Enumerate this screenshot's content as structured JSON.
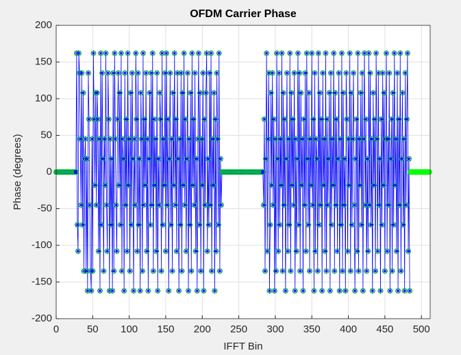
{
  "chart_data": {
    "type": "line",
    "title": "OFDM Carrier Phase",
    "x_label": "IFFT Bin",
    "y_label": "Phase (degrees)",
    "xlim": [
      0,
      512
    ],
    "xticks": [
      0,
      50,
      100,
      150,
      200,
      250,
      300,
      350,
      400,
      450,
      500
    ],
    "ylim": [
      -200,
      200
    ],
    "yticks": [
      -200,
      -150,
      -100,
      -50,
      0,
      50,
      100,
      150,
      200
    ],
    "grid": true,
    "series": [
      {
        "color": "#0000ff",
        "marker_color": "#00ff00",
        "x": [
          0,
          1,
          2,
          3,
          4,
          5,
          6,
          7,
          8,
          9,
          10,
          11,
          12,
          13,
          14,
          15,
          16,
          17,
          18,
          19,
          20,
          21,
          22,
          23,
          24,
          25,
          26,
          27,
          28,
          29,
          30,
          31,
          32,
          33,
          34,
          35,
          36,
          37,
          38,
          39,
          40,
          41,
          42,
          43,
          44,
          45,
          46,
          47,
          48,
          49,
          50,
          51,
          52,
          53,
          54,
          55,
          56,
          57,
          58,
          59,
          60,
          61,
          62,
          63,
          64,
          65,
          66,
          67,
          68,
          69,
          70,
          71,
          72,
          73,
          74,
          75,
          76,
          77,
          78,
          79,
          80,
          81,
          82,
          83,
          84,
          85,
          86,
          87,
          88,
          89,
          90,
          91,
          92,
          93,
          94,
          95,
          96,
          97,
          98,
          99,
          100,
          101,
          102,
          103,
          104,
          105,
          106,
          107,
          108,
          109,
          110,
          111,
          112,
          113,
          114,
          115,
          116,
          117,
          118,
          119,
          120,
          121,
          122,
          123,
          124,
          125,
          126,
          127,
          128,
          129,
          130,
          131,
          132,
          133,
          134,
          135,
          136,
          137,
          138,
          139,
          140,
          141,
          142,
          143,
          144,
          145,
          146,
          147,
          148,
          149,
          150,
          151,
          152,
          153,
          154,
          155,
          156,
          157,
          158,
          159,
          160,
          161,
          162,
          163,
          164,
          165,
          166,
          167,
          168,
          169,
          170,
          171,
          172,
          173,
          174,
          175,
          176,
          177,
          178,
          179,
          180,
          181,
          182,
          183,
          184,
          185,
          186,
          187,
          188,
          189,
          190,
          191,
          192,
          193,
          194,
          195,
          196,
          197,
          198,
          199,
          200,
          201,
          202,
          203,
          204,
          205,
          206,
          207,
          208,
          209,
          210,
          211,
          212,
          213,
          214,
          215,
          216,
          217,
          218,
          219,
          220,
          221,
          222,
          223,
          224,
          225,
          226,
          227,
          228,
          229,
          230,
          231,
          232,
          233,
          234,
          235,
          236,
          237,
          238,
          239,
          240,
          241,
          242,
          243,
          244,
          245,
          246,
          247,
          248,
          249,
          250,
          251,
          252,
          253,
          254,
          255,
          256,
          257,
          258,
          259,
          260,
          261,
          262,
          263,
          264,
          265,
          266,
          267,
          268,
          269,
          270,
          271,
          272,
          273,
          274,
          275,
          276,
          277,
          278,
          279,
          280,
          281,
          282,
          283,
          284,
          285,
          286,
          287,
          288,
          289,
          290,
          291,
          292,
          293,
          294,
          295,
          296,
          297,
          298,
          299,
          300,
          301,
          302,
          303,
          304,
          305,
          306,
          307,
          308,
          309,
          310,
          311,
          312,
          313,
          314,
          315,
          316,
          317,
          318,
          319,
          320,
          321,
          322,
          323,
          324,
          325,
          326,
          327,
          328,
          329,
          330,
          331,
          332,
          333,
          334,
          335,
          336,
          337,
          338,
          339,
          340,
          341,
          342,
          343,
          344,
          345,
          346,
          347,
          348,
          349,
          350,
          351,
          352,
          353,
          354,
          355,
          356,
          357,
          358,
          359,
          360,
          361,
          362,
          363,
          364,
          365,
          366,
          367,
          368,
          369,
          370,
          371,
          372,
          373,
          374,
          375,
          376,
          377,
          378,
          379,
          380,
          381,
          382,
          383,
          384,
          385,
          386,
          387,
          388,
          389,
          390,
          391,
          392,
          393,
          394,
          395,
          396,
          397,
          398,
          399,
          400,
          401,
          402,
          403,
          404,
          405,
          406,
          407,
          408,
          409,
          410,
          411,
          412,
          413,
          414,
          415,
          416,
          417,
          418,
          419,
          420,
          421,
          422,
          423,
          424,
          425,
          426,
          427,
          428,
          429,
          430,
          431,
          432,
          433,
          434,
          435,
          436,
          437,
          438,
          439,
          440,
          441,
          442,
          443,
          444,
          445,
          446,
          447,
          448,
          449,
          450,
          451,
          452,
          453,
          454,
          455,
          456,
          457,
          458,
          459,
          460,
          461,
          462,
          463,
          464,
          465,
          466,
          467,
          468,
          469,
          470,
          471,
          472,
          473,
          474,
          475,
          476,
          477,
          478,
          479,
          480,
          481,
          482,
          483,
          484
        ],
        "values": [
          0,
          0,
          0,
          0,
          0,
          0,
          0,
          0,
          0,
          0,
          0,
          0,
          0,
          0,
          0,
          0,
          0,
          0,
          0,
          0,
          0,
          0,
          0,
          0,
          0,
          0,
          0,
          0,
          162,
          -72,
          -108,
          162,
          135,
          45,
          -45,
          135,
          -72,
          108,
          -135,
          18,
          45,
          -135,
          18,
          -162,
          135,
          72,
          -45,
          -135,
          -162,
          45,
          -135,
          162,
          72,
          -18,
          108,
          -45,
          108,
          72,
          -108,
          45,
          -162,
          162,
          -72,
          135,
          18,
          -135,
          45,
          -18,
          162,
          -45,
          -108,
          135,
          72,
          -162,
          45,
          -72,
          18,
          -162,
          135,
          -135,
          162,
          45,
          -45,
          -108,
          72,
          135,
          -18,
          108,
          -72,
          162,
          -135,
          45,
          18,
          -162,
          135,
          -45,
          72,
          -108,
          162,
          -18,
          45,
          -135,
          108,
          -72,
          135,
          18,
          -162,
          45,
          -45,
          162,
          72,
          -108,
          135,
          -72,
          18,
          -162,
          108,
          45,
          -135,
          162,
          -45,
          72,
          -18,
          135,
          -108,
          45,
          -162,
          18,
          108,
          -72,
          135,
          -45,
          162,
          -135,
          72,
          -18,
          45,
          -108,
          135,
          -162,
          18,
          -45,
          108,
          72,
          -135,
          162,
          -72,
          45,
          -18,
          135,
          -108,
          162,
          -45,
          72,
          -162,
          18,
          135,
          -72,
          45,
          -135,
          108,
          -18,
          162,
          -45,
          72,
          -108,
          135,
          18,
          -162,
          45,
          -72,
          135,
          -135,
          108,
          -18,
          162,
          -45,
          72,
          -108,
          18,
          135,
          -162,
          45,
          -72,
          108,
          -135,
          162,
          -18,
          72,
          -45,
          135,
          -108,
          18,
          -162,
          45,
          162,
          -72,
          108,
          -135,
          45,
          -18,
          135,
          -162,
          72,
          -45,
          108,
          162,
          -108,
          18,
          -72,
          135,
          -45,
          162,
          -135,
          45,
          -18,
          108,
          -162,
          72,
          -108,
          135,
          45,
          -72,
          162,
          -135,
          18,
          -45,
          0,
          0,
          0,
          0,
          0,
          0,
          0,
          0,
          0,
          0,
          0,
          0,
          0,
          0,
          0,
          0,
          0,
          0,
          0,
          0,
          0,
          0,
          0,
          0,
          0,
          0,
          0,
          0,
          0,
          0,
          0,
          0,
          0,
          0,
          0,
          0,
          0,
          0,
          0,
          0,
          0,
          0,
          0,
          0,
          0,
          0,
          0,
          0,
          0,
          0,
          0,
          0,
          0,
          0,
          0,
          0,
          0,
          -45,
          72,
          -135,
          18,
          162,
          -108,
          45,
          135,
          -162,
          -72,
          108,
          -18,
          135,
          -45,
          72,
          -162,
          45,
          -135,
          162,
          18,
          -108,
          135,
          -72,
          45,
          -18,
          162,
          -135,
          108,
          -45,
          72,
          -162,
          18,
          135,
          -108,
          45,
          -72,
          162,
          -135,
          108,
          -18,
          72,
          -45,
          135,
          -162,
          45,
          -108,
          18,
          162,
          -72,
          135,
          -135,
          108,
          -18,
          45,
          -162,
          72,
          -45,
          135,
          -108,
          162,
          18,
          -72,
          108,
          -135,
          45,
          -18,
          162,
          -45,
          72,
          -162,
          135,
          -108,
          45,
          18,
          -135,
          162,
          -72,
          108,
          -45,
          72,
          -162,
          135,
          -18,
          45,
          -108,
          162,
          -135,
          72,
          -45,
          18,
          108,
          -162,
          135,
          -72,
          45,
          -18,
          162,
          -135,
          108,
          -45,
          72,
          -108,
          18,
          135,
          -162,
          45,
          -72,
          162,
          -135,
          108,
          -45,
          18,
          -162,
          135,
          72,
          -108,
          45,
          -18,
          162,
          -135,
          108,
          -72,
          45,
          135,
          -45,
          -162,
          18,
          72,
          -108,
          162,
          -135,
          45,
          -18,
          108,
          -72,
          135,
          -162,
          45,
          162,
          -45,
          72,
          -135,
          18,
          -108,
          162,
          -45,
          135,
          -72,
          45,
          -162,
          108,
          -18,
          72,
          -135,
          162,
          45,
          -108,
          135,
          -45,
          18,
          -162,
          72,
          -72,
          135,
          -18,
          108,
          -135,
          45,
          162,
          -108,
          45,
          -45,
          135,
          -162,
          18,
          72,
          -135,
          108,
          -72,
          162,
          -18,
          45,
          -108,
          135,
          -162,
          72,
          -45,
          162,
          -135,
          18,
          108,
          -72,
          45,
          -162,
          135,
          -45,
          72,
          162,
          -108,
          18,
          -162
        ]
      },
      {
        "marker_color": "#00ff00",
        "x": [
          485,
          486,
          487,
          488,
          489,
          490,
          491,
          492,
          493,
          494,
          495,
          496,
          497,
          498,
          499,
          500,
          501,
          502,
          503,
          504,
          505,
          506,
          507,
          508,
          509,
          510,
          511
        ],
        "values": [
          0,
          0,
          0,
          0,
          0,
          0,
          0,
          0,
          0,
          0,
          0,
          0,
          0,
          0,
          0,
          0,
          0,
          0,
          0,
          0,
          0,
          0,
          0,
          0,
          0,
          0,
          0
        ]
      }
    ]
  }
}
